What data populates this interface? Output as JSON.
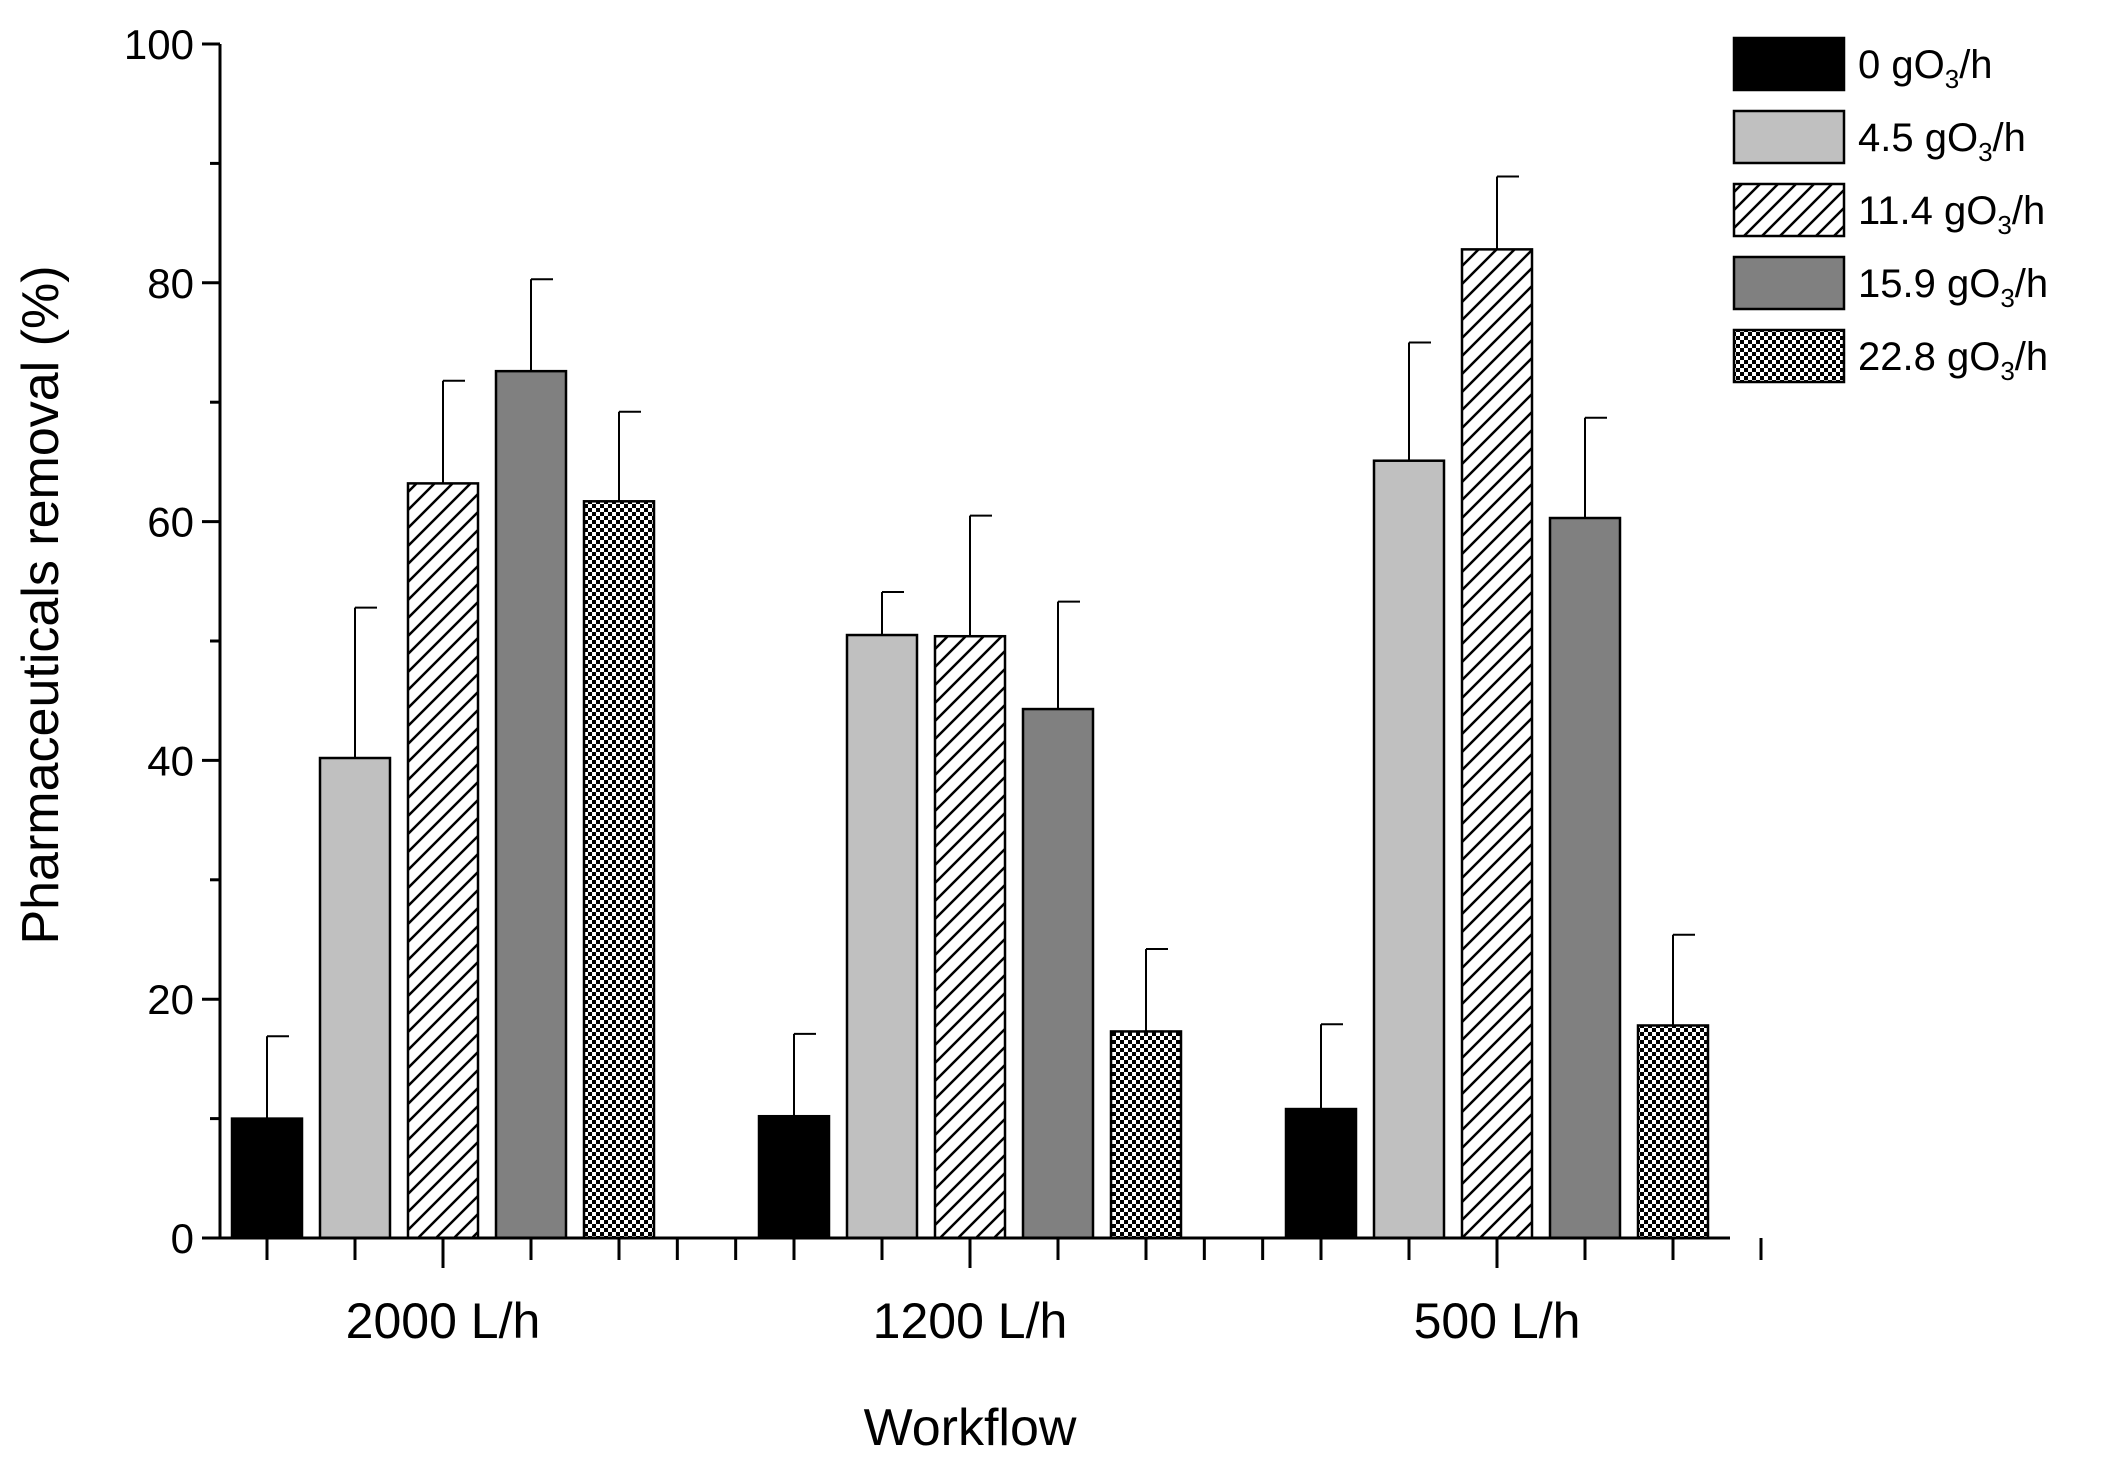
{
  "chart_data": {
    "type": "bar",
    "title": "",
    "xlabel": "Workflow",
    "ylabel": "Pharmaceuticals removal (%)",
    "ylim": [
      0,
      100
    ],
    "yticks": [
      0,
      20,
      40,
      60,
      80,
      100
    ],
    "categories": [
      "2000 L/h",
      "1200 L/h",
      "500 L/h"
    ],
    "series": [
      {
        "name": "0 gO3/h",
        "label_parts": [
          "0 gO",
          "3",
          "/h"
        ],
        "pattern": "solid-black",
        "values": [
          10,
          10.2,
          10.8
        ],
        "errors": [
          6.9,
          6.9,
          7.1
        ]
      },
      {
        "name": "4.5 gO3/h",
        "label_parts": [
          "4.5 gO",
          "3",
          "/h"
        ],
        "pattern": "solid-light-gray",
        "values": [
          40.2,
          50.5,
          65.1
        ],
        "errors": [
          12.6,
          3.6,
          9.9
        ]
      },
      {
        "name": "11.4 gO3/h",
        "label_parts": [
          "11.4 gO",
          "3",
          "/h"
        ],
        "pattern": "diagonal-hatch",
        "values": [
          63.2,
          50.4,
          82.8
        ],
        "errors": [
          8.6,
          10.1,
          6.1
        ]
      },
      {
        "name": "15.9 gO3/h",
        "label_parts": [
          "15.9 gO",
          "3",
          "/h"
        ],
        "pattern": "solid-dark-gray",
        "values": [
          72.6,
          44.3,
          60.3
        ],
        "errors": [
          7.7,
          9.0,
          8.4
        ]
      },
      {
        "name": "22.8 gO3/h",
        "label_parts": [
          "22.8 gO",
          "3",
          "/h"
        ],
        "pattern": "checker",
        "values": [
          61.7,
          17.3,
          17.8
        ],
        "errors": [
          7.5,
          6.9,
          7.6
        ]
      }
    ],
    "legend_position": "top-right",
    "error_bars": "positive"
  }
}
